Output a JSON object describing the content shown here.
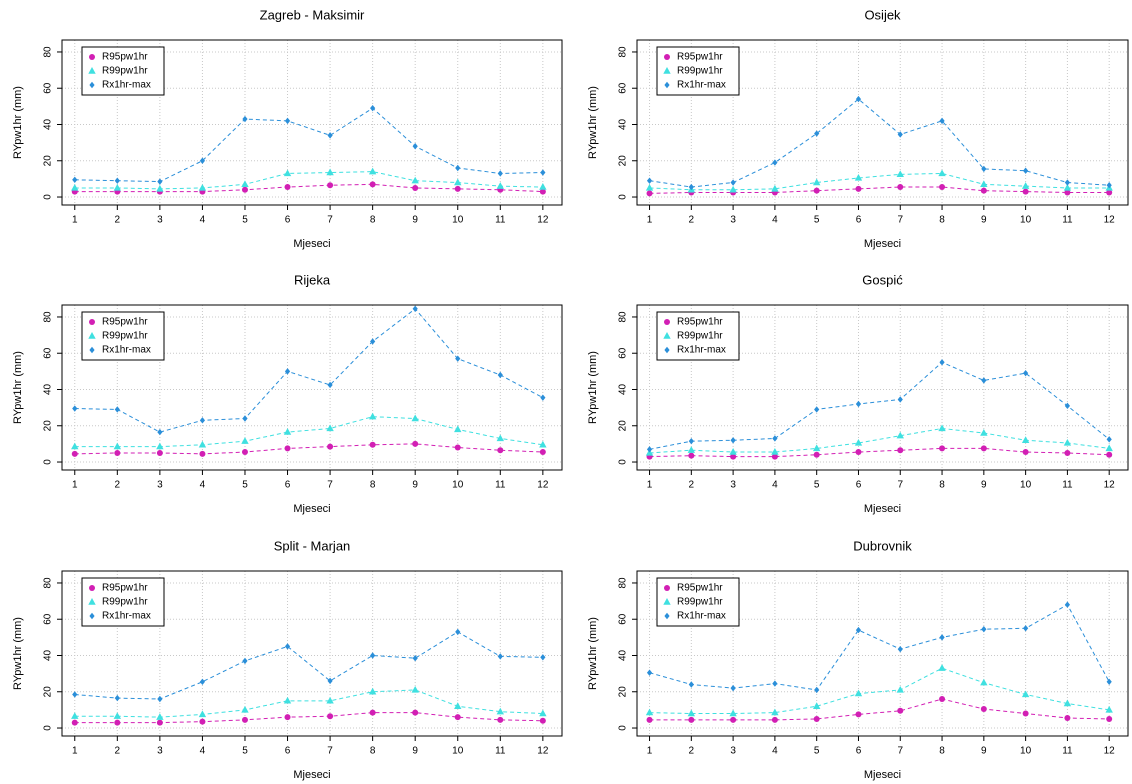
{
  "chart_data": [
    {
      "type": "line",
      "title": "Zagreb - Maksimir",
      "xlabel": "Mjeseci",
      "ylabel": "RYpw1hr (mm)",
      "x": [
        1,
        2,
        3,
        4,
        5,
        6,
        7,
        8,
        9,
        10,
        11,
        12
      ],
      "xlim": [
        0.7,
        12.45
      ],
      "ylim": [
        -4.4,
        86.6
      ],
      "xticks": [
        1,
        2,
        3,
        4,
        5,
        6,
        7,
        8,
        9,
        10,
        11,
        12
      ],
      "yticks": [
        0,
        20,
        40,
        60,
        80
      ],
      "grid": true,
      "legend": "topleft",
      "series": [
        {
          "name": "R95pw1hr",
          "color": "#d21fb4",
          "marker": "circle",
          "values": [
            3,
            3,
            3,
            3,
            4,
            5.5,
            6.5,
            7,
            5,
            4.5,
            4,
            3
          ]
        },
        {
          "name": "R99pw1hr",
          "color": "#3fe0e0",
          "marker": "triangle",
          "values": [
            5,
            5,
            4.5,
            5,
            7,
            13,
            13.5,
            14,
            9,
            8,
            6,
            5.5
          ]
        },
        {
          "name": "Rx1hr-max",
          "color": "#2b8fd9",
          "marker": "diamond",
          "values": [
            9.5,
            9,
            8.5,
            20,
            43,
            42,
            34,
            49,
            28,
            16,
            13,
            13.5
          ]
        }
      ]
    },
    {
      "type": "line",
      "title": "Osijek",
      "xlabel": "Mjeseci",
      "ylabel": "RYpw1hr (mm)",
      "x": [
        1,
        2,
        3,
        4,
        5,
        6,
        7,
        8,
        9,
        10,
        11,
        12
      ],
      "xlim": [
        0.7,
        12.45
      ],
      "ylim": [
        -4.4,
        86.6
      ],
      "xticks": [
        1,
        2,
        3,
        4,
        5,
        6,
        7,
        8,
        9,
        10,
        11,
        12
      ],
      "yticks": [
        0,
        20,
        40,
        60,
        80
      ],
      "grid": true,
      "legend": "topleft",
      "series": [
        {
          "name": "R95pw1hr",
          "color": "#d21fb4",
          "marker": "circle",
          "values": [
            2,
            2.5,
            2.5,
            2.5,
            3.5,
            4.5,
            5.5,
            5.5,
            3.5,
            3,
            2.5,
            2.5
          ]
        },
        {
          "name": "R99pw1hr",
          "color": "#3fe0e0",
          "marker": "triangle",
          "values": [
            5,
            4,
            4,
            4.5,
            8,
            10.5,
            12.5,
            13,
            7,
            6,
            5,
            5
          ]
        },
        {
          "name": "Rx1hr-max",
          "color": "#2b8fd9",
          "marker": "diamond",
          "values": [
            9,
            5.5,
            8,
            19,
            35,
            54,
            34.5,
            42,
            15.5,
            14.5,
            8,
            6.5
          ]
        }
      ]
    },
    {
      "type": "line",
      "title": "Rijeka",
      "xlabel": "Mjeseci",
      "ylabel": "RYpw1hr (mm)",
      "x": [
        1,
        2,
        3,
        4,
        5,
        6,
        7,
        8,
        9,
        10,
        11,
        12
      ],
      "xlim": [
        0.7,
        12.45
      ],
      "ylim": [
        -4.4,
        86.6
      ],
      "xticks": [
        1,
        2,
        3,
        4,
        5,
        6,
        7,
        8,
        9,
        10,
        11,
        12
      ],
      "yticks": [
        0,
        20,
        40,
        60,
        80
      ],
      "grid": true,
      "legend": "topleft",
      "series": [
        {
          "name": "R95pw1hr",
          "color": "#d21fb4",
          "marker": "circle",
          "values": [
            4.5,
            5,
            5,
            4.5,
            5.5,
            7.5,
            8.5,
            9.5,
            10,
            8,
            6.5,
            5.5
          ]
        },
        {
          "name": "R99pw1hr",
          "color": "#3fe0e0",
          "marker": "triangle",
          "values": [
            8.5,
            8.5,
            8.5,
            9.5,
            11.5,
            16.5,
            18.5,
            25,
            24,
            18,
            13,
            9.5
          ]
        },
        {
          "name": "Rx1hr-max",
          "color": "#2b8fd9",
          "marker": "diamond",
          "values": [
            29.5,
            29,
            16.5,
            23,
            24,
            50,
            42.5,
            66.5,
            84.5,
            57,
            48,
            35.5
          ]
        }
      ]
    },
    {
      "type": "line",
      "title": "Gospić",
      "xlabel": "Mjeseci",
      "ylabel": "RYpw1hr (mm)",
      "x": [
        1,
        2,
        3,
        4,
        5,
        6,
        7,
        8,
        9,
        10,
        11,
        12
      ],
      "xlim": [
        0.7,
        12.45
      ],
      "ylim": [
        -4.4,
        86.6
      ],
      "xticks": [
        1,
        2,
        3,
        4,
        5,
        6,
        7,
        8,
        9,
        10,
        11,
        12
      ],
      "yticks": [
        0,
        20,
        40,
        60,
        80
      ],
      "grid": true,
      "legend": "topleft",
      "series": [
        {
          "name": "R95pw1hr",
          "color": "#d21fb4",
          "marker": "circle",
          "values": [
            3,
            3.5,
            3,
            3,
            4,
            5.5,
            6.5,
            7.5,
            7.5,
            5.5,
            5,
            4
          ]
        },
        {
          "name": "R99pw1hr",
          "color": "#3fe0e0",
          "marker": "triangle",
          "values": [
            5,
            6.5,
            5.5,
            5.5,
            7.5,
            10.5,
            14.5,
            18.5,
            16,
            12,
            10.5,
            7.5
          ]
        },
        {
          "name": "Rx1hr-max",
          "color": "#2b8fd9",
          "marker": "diamond",
          "values": [
            7,
            11.5,
            12,
            13,
            29,
            32,
            34.5,
            55,
            45,
            49,
            31,
            12.5
          ]
        }
      ]
    },
    {
      "type": "line",
      "title": "Split - Marjan",
      "xlabel": "Mjeseci",
      "ylabel": "RYpw1hr (mm)",
      "x": [
        1,
        2,
        3,
        4,
        5,
        6,
        7,
        8,
        9,
        10,
        11,
        12
      ],
      "xlim": [
        0.7,
        12.45
      ],
      "ylim": [
        -4.4,
        86.6
      ],
      "xticks": [
        1,
        2,
        3,
        4,
        5,
        6,
        7,
        8,
        9,
        10,
        11,
        12
      ],
      "yticks": [
        0,
        20,
        40,
        60,
        80
      ],
      "grid": true,
      "legend": "topleft",
      "series": [
        {
          "name": "R95pw1hr",
          "color": "#d21fb4",
          "marker": "circle",
          "values": [
            3,
            3,
            3,
            3.5,
            4.5,
            6,
            6.5,
            8.5,
            8.5,
            6,
            4.5,
            4
          ]
        },
        {
          "name": "R99pw1hr",
          "color": "#3fe0e0",
          "marker": "triangle",
          "values": [
            6.5,
            6.5,
            6,
            7.5,
            10,
            15,
            15,
            20,
            21,
            12,
            9,
            8
          ]
        },
        {
          "name": "Rx1hr-max",
          "color": "#2b8fd9",
          "marker": "diamond",
          "values": [
            18.5,
            16.5,
            16,
            25.5,
            37,
            45,
            26,
            40,
            38.5,
            53,
            39.5,
            39
          ]
        }
      ]
    },
    {
      "type": "line",
      "title": "Dubrovnik",
      "xlabel": "Mjeseci",
      "ylabel": "RYpw1hr (mm)",
      "x": [
        1,
        2,
        3,
        4,
        5,
        6,
        7,
        8,
        9,
        10,
        11,
        12
      ],
      "xlim": [
        0.7,
        12.45
      ],
      "ylim": [
        -4.4,
        86.6
      ],
      "xticks": [
        1,
        2,
        3,
        4,
        5,
        6,
        7,
        8,
        9,
        10,
        11,
        12
      ],
      "yticks": [
        0,
        20,
        40,
        60,
        80
      ],
      "grid": true,
      "legend": "topleft",
      "series": [
        {
          "name": "R95pw1hr",
          "color": "#d21fb4",
          "marker": "circle",
          "values": [
            4.5,
            4.5,
            4.5,
            4.5,
            5,
            7.5,
            9.5,
            16,
            10.5,
            8,
            5.5,
            5
          ]
        },
        {
          "name": "R99pw1hr",
          "color": "#3fe0e0",
          "marker": "triangle",
          "values": [
            8.5,
            8,
            8,
            8.5,
            12,
            19,
            21,
            33,
            25,
            18.5,
            13.5,
            10
          ]
        },
        {
          "name": "Rx1hr-max",
          "color": "#2b8fd9",
          "marker": "diamond",
          "values": [
            30.5,
            24,
            22,
            24.5,
            21,
            54,
            43.5,
            50,
            54.5,
            55,
            68,
            25.5
          ]
        }
      ]
    }
  ]
}
